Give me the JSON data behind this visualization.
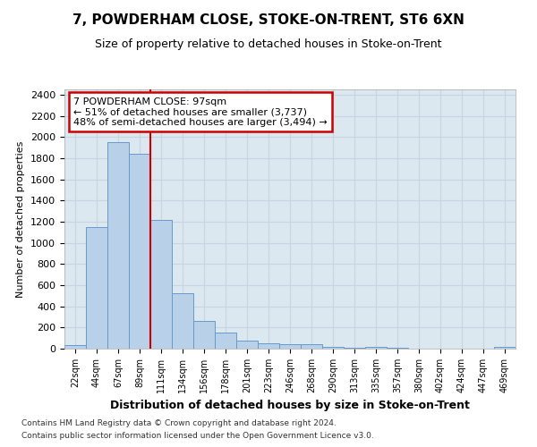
{
  "title": "7, POWDERHAM CLOSE, STOKE-ON-TRENT, ST6 6XN",
  "subtitle": "Size of property relative to detached houses in Stoke-on-Trent",
  "xlabel": "Distribution of detached houses by size in Stoke-on-Trent",
  "ylabel": "Number of detached properties",
  "categories": [
    "22sqm",
    "44sqm",
    "67sqm",
    "89sqm",
    "111sqm",
    "134sqm",
    "156sqm",
    "178sqm",
    "201sqm",
    "223sqm",
    "246sqm",
    "268sqm",
    "290sqm",
    "313sqm",
    "335sqm",
    "357sqm",
    "380sqm",
    "402sqm",
    "424sqm",
    "447sqm",
    "469sqm"
  ],
  "values": [
    30,
    1150,
    1950,
    1840,
    1220,
    520,
    265,
    150,
    80,
    50,
    45,
    40,
    20,
    5,
    15,
    5,
    0,
    0,
    0,
    0,
    20
  ],
  "bar_color": "#b8d0e8",
  "bar_edge_color": "#6699cc",
  "annotation_box_text_line1": "7 POWDERHAM CLOSE: 97sqm",
  "annotation_box_text_line2": "← 51% of detached houses are smaller (3,737)",
  "annotation_box_text_line3": "48% of semi-detached houses are larger (3,494) →",
  "annotation_box_color": "#ffffff",
  "annotation_box_edge_color": "#cc0000",
  "vline_color": "#cc0000",
  "vline_x": 3.5,
  "ylim": [
    0,
    2450
  ],
  "yticks": [
    0,
    200,
    400,
    600,
    800,
    1000,
    1200,
    1400,
    1600,
    1800,
    2000,
    2200,
    2400
  ],
  "grid_color": "#c8d4e0",
  "bg_color": "#dce8f0",
  "footer1": "Contains HM Land Registry data © Crown copyright and database right 2024.",
  "footer2": "Contains public sector information licensed under the Open Government Licence v3.0."
}
